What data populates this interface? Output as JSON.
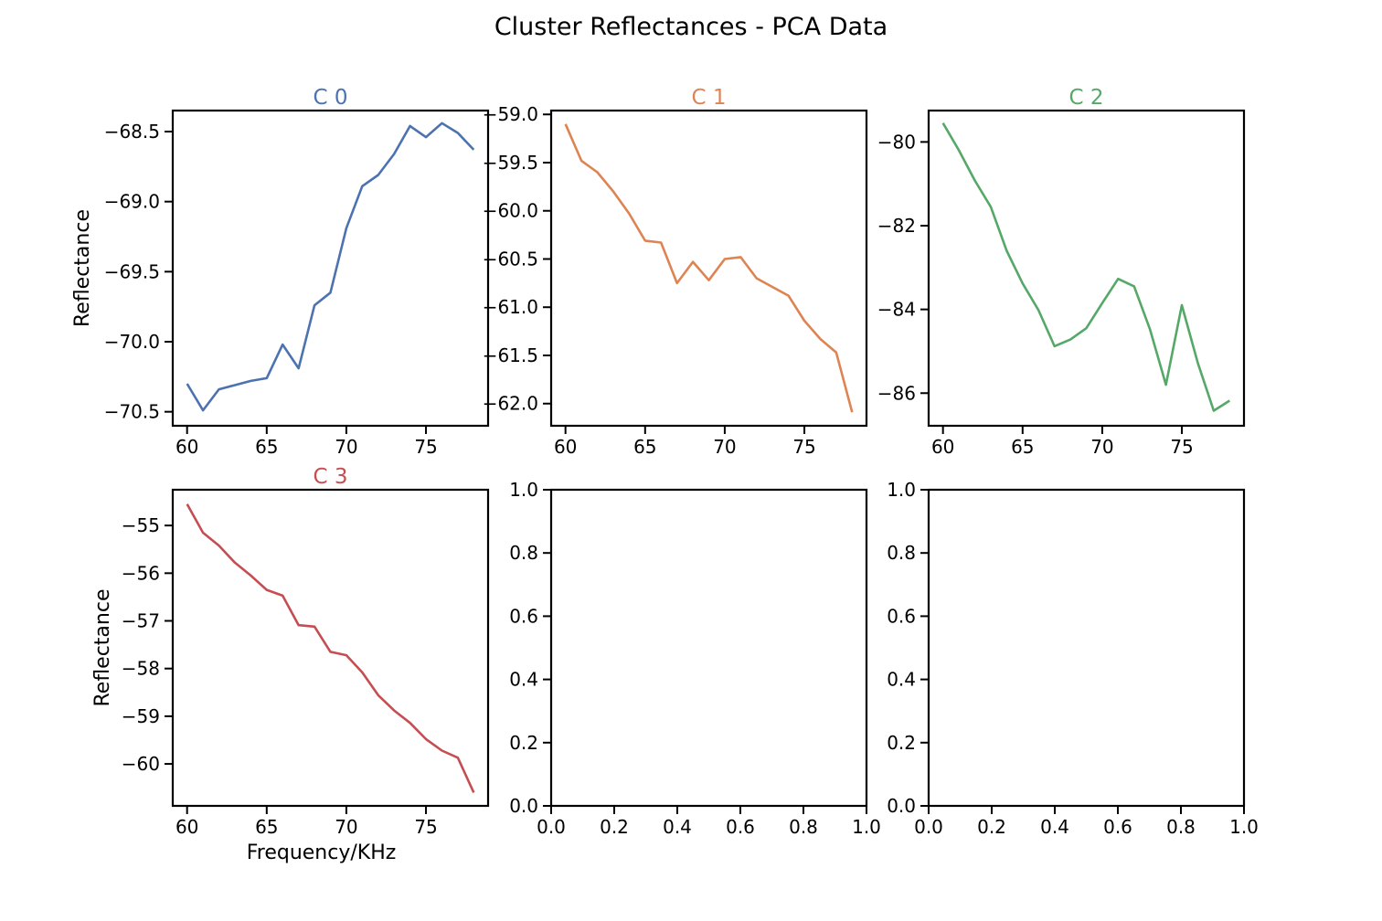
{
  "figure": {
    "title": "Cluster Reflectances - PCA Data"
  },
  "chart_data": [
    {
      "type": "line",
      "title": "C 0",
      "color": "#4c72b0",
      "xlabel": "",
      "ylabel": "Reflectance",
      "xlim": [
        59.1,
        78.9
      ],
      "ylim": [
        -70.6,
        -68.35
      ],
      "xticks": [
        60,
        65,
        70,
        75
      ],
      "yticks": [
        -70.5,
        -70.0,
        -69.5,
        -69.0,
        -68.5
      ],
      "x": [
        60,
        61,
        62,
        63,
        64,
        65,
        66,
        67,
        68,
        69,
        70,
        71,
        72,
        73,
        74,
        75,
        76,
        77,
        78
      ],
      "y": [
        -70.3,
        -70.49,
        -70.34,
        -70.31,
        -70.28,
        -70.26,
        -70.02,
        -70.19,
        -69.74,
        -69.65,
        -69.19,
        -68.89,
        -68.81,
        -68.66,
        -68.46,
        -68.54,
        -68.44,
        -68.51,
        -68.63
      ]
    },
    {
      "type": "line",
      "title": "C 1",
      "color": "#dd8452",
      "xlabel": "",
      "ylabel": "",
      "xlim": [
        59.1,
        78.9
      ],
      "ylim": [
        -62.23,
        -58.96
      ],
      "xticks": [
        60,
        65,
        70,
        75
      ],
      "yticks": [
        -62.0,
        -61.5,
        -61.0,
        -60.5,
        -60.0,
        -59.5,
        -59.0
      ],
      "x": [
        60,
        61,
        62,
        63,
        64,
        65,
        66,
        67,
        68,
        69,
        70,
        71,
        72,
        73,
        74,
        75,
        76,
        77,
        78
      ],
      "y": [
        -59.1,
        -59.48,
        -59.6,
        -59.8,
        -60.03,
        -60.31,
        -60.33,
        -60.75,
        -60.53,
        -60.72,
        -60.5,
        -60.48,
        -60.7,
        -60.79,
        -60.88,
        -61.14,
        -61.33,
        -61.47,
        -62.09
      ]
    },
    {
      "type": "line",
      "title": "C 2",
      "color": "#55a868",
      "xlabel": "",
      "ylabel": "",
      "xlim": [
        59.1,
        78.9
      ],
      "ylim": [
        -86.78,
        -79.25
      ],
      "xticks": [
        60,
        65,
        70,
        75
      ],
      "yticks": [
        -86,
        -84,
        -82,
        -80
      ],
      "x": [
        60,
        61,
        62,
        63,
        64,
        65,
        66,
        67,
        68,
        69,
        70,
        71,
        72,
        73,
        74,
        75,
        76,
        77,
        78
      ],
      "y": [
        -79.55,
        -80.2,
        -80.92,
        -81.55,
        -82.6,
        -83.38,
        -84.02,
        -84.88,
        -84.72,
        -84.45,
        -83.85,
        -83.27,
        -83.45,
        -84.48,
        -85.8,
        -83.9,
        -85.28,
        -86.42,
        -86.18
      ]
    },
    {
      "type": "line",
      "title": "C 3",
      "color": "#c44e52",
      "xlabel": "Frequency/KHz",
      "ylabel": "Reflectance",
      "xlim": [
        59.1,
        78.9
      ],
      "ylim": [
        -60.88,
        -54.25
      ],
      "xticks": [
        60,
        65,
        70,
        75
      ],
      "yticks": [
        -60,
        -59,
        -58,
        -57,
        -56,
        -55
      ],
      "x": [
        60,
        61,
        62,
        63,
        64,
        65,
        66,
        67,
        68,
        69,
        70,
        71,
        72,
        73,
        74,
        75,
        76,
        77,
        78
      ],
      "y": [
        -54.55,
        -55.15,
        -55.42,
        -55.78,
        -56.05,
        -56.35,
        -56.47,
        -57.09,
        -57.12,
        -57.65,
        -57.72,
        -58.08,
        -58.56,
        -58.88,
        -59.14,
        -59.48,
        -59.72,
        -59.87,
        -60.6
      ]
    },
    {
      "type": "line",
      "title": "",
      "xlabel": "",
      "ylabel": "",
      "xlim": [
        0,
        1
      ],
      "ylim": [
        0,
        1
      ],
      "xticks": [
        0.0,
        0.2,
        0.4,
        0.6,
        0.8,
        1.0
      ],
      "yticks": [
        0.0,
        0.2,
        0.4,
        0.6,
        0.8,
        1.0
      ],
      "x": [],
      "y": []
    },
    {
      "type": "line",
      "title": "",
      "xlabel": "",
      "ylabel": "",
      "xlim": [
        0,
        1
      ],
      "ylim": [
        0,
        1
      ],
      "xticks": [
        0.0,
        0.2,
        0.4,
        0.6,
        0.8,
        1.0
      ],
      "yticks": [
        0.0,
        0.2,
        0.4,
        0.6,
        0.8,
        1.0
      ],
      "x": [],
      "y": []
    }
  ]
}
